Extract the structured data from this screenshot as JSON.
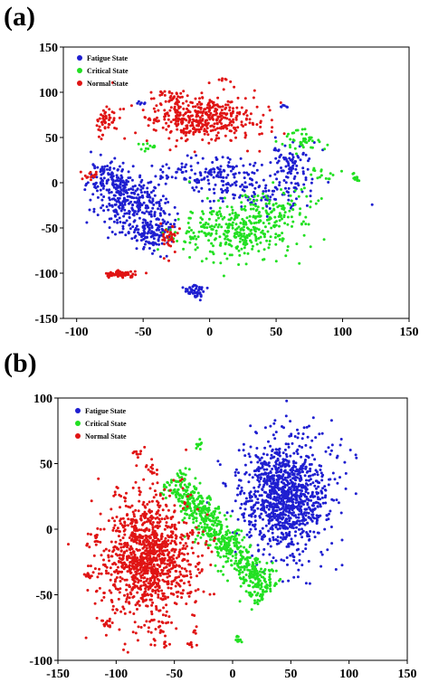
{
  "panels": [
    {
      "label": "(a)"
    },
    {
      "label": "(b)"
    }
  ],
  "chart_data": [
    {
      "type": "scatter",
      "title": "",
      "xlabel": "",
      "ylabel": "",
      "xlim": [
        -110,
        150
      ],
      "ylim": [
        -150,
        150
      ],
      "xticks": [
        -100,
        -50,
        0,
        50,
        100,
        150
      ],
      "yticks": [
        -150,
        -100,
        -50,
        0,
        50,
        100,
        150
      ],
      "grid": false,
      "legend_position": "top-left",
      "series": [
        {
          "name": "Fatigue State",
          "color": "#1f1fd0",
          "clusters": [
            {
              "cx": -60,
              "cy": -20,
              "sx": 12,
              "sy": 14,
              "n": 260
            },
            {
              "cx": -75,
              "cy": 5,
              "sx": 8,
              "sy": 10,
              "n": 110
            },
            {
              "cx": -50,
              "cy": -55,
              "sx": 10,
              "sy": 8,
              "n": 90
            },
            {
              "cx": -38,
              "cy": -45,
              "sx": 5,
              "sy": 16,
              "n": 70
            },
            {
              "cx": 0,
              "cy": 12,
              "sx": 18,
              "sy": 8,
              "n": 130
            },
            {
              "cx": 30,
              "cy": -10,
              "sx": 20,
              "sy": 9,
              "n": 120
            },
            {
              "cx": 62,
              "cy": 20,
              "sx": 9,
              "sy": 12,
              "n": 90
            },
            {
              "cx": -10,
              "cy": -120,
              "sx": 4,
              "sy": 4,
              "n": 45
            },
            {
              "cx": 55,
              "cy": 84,
              "sx": 2,
              "sy": 1,
              "n": 6
            },
            {
              "cx": -50,
              "cy": 88,
              "sx": 3,
              "sy": 1,
              "n": 6
            }
          ]
        },
        {
          "name": "Critical State",
          "color": "#22e022",
          "clusters": [
            {
              "cx": 20,
              "cy": -55,
              "sx": 22,
              "sy": 15,
              "n": 330
            },
            {
              "cx": 50,
              "cy": -28,
              "sx": 14,
              "sy": 12,
              "n": 90
            },
            {
              "cx": 70,
              "cy": 45,
              "sx": 7,
              "sy": 7,
              "n": 45
            },
            {
              "cx": 110,
              "cy": 5,
              "sx": 2,
              "sy": 2,
              "n": 14
            },
            {
              "cx": -46,
              "cy": 40,
              "sx": 3,
              "sy": 2,
              "n": 12
            },
            {
              "cx": 88,
              "cy": 10,
              "sx": 5,
              "sy": 4,
              "n": 15
            }
          ]
        },
        {
          "name": "Normal State",
          "color": "#e01414",
          "clusters": [
            {
              "cx": -5,
              "cy": 70,
              "sx": 22,
              "sy": 12,
              "n": 420
            },
            {
              "cx": -28,
              "cy": 95,
              "sx": 6,
              "sy": 4,
              "n": 35
            },
            {
              "cx": -67,
              "cy": -101,
              "sx": 6,
              "sy": 2,
              "n": 70
            },
            {
              "cx": -78,
              "cy": 70,
              "sx": 4,
              "sy": 8,
              "n": 50
            },
            {
              "cx": -30,
              "cy": -60,
              "sx": 3,
              "sy": 10,
              "n": 35
            },
            {
              "cx": -90,
              "cy": 8,
              "sx": 3,
              "sy": 3,
              "n": 15
            },
            {
              "cx": 10,
              "cy": 113,
              "sx": 3,
              "sy": 1,
              "n": 6
            }
          ]
        }
      ]
    },
    {
      "type": "scatter",
      "title": "",
      "xlabel": "",
      "ylabel": "",
      "xlim": [
        -150,
        150
      ],
      "ylim": [
        -100,
        100
      ],
      "xticks": [
        -150,
        -100,
        -50,
        0,
        50,
        100,
        150
      ],
      "yticks": [
        -100,
        -50,
        0,
        50,
        100
      ],
      "grid": false,
      "legend_position": "top-left",
      "series": [
        {
          "name": "Fatigue State",
          "color": "#1f1fd0",
          "clusters": [
            {
              "cx": 45,
              "cy": 25,
              "sx": 20,
              "sy": 22,
              "n": 1100
            }
          ]
        },
        {
          "name": "Critical State",
          "color": "#22e022",
          "band": {
            "x0": -52,
            "y0": 40,
            "x1": 30,
            "y1": -50,
            "width": 13,
            "n": 650
          },
          "clusters": [
            {
              "cx": -28,
              "cy": 64,
              "sx": 1.5,
              "sy": 2,
              "n": 10
            },
            {
              "cx": 5,
              "cy": -83,
              "sx": 1.5,
              "sy": 2,
              "n": 10
            }
          ]
        },
        {
          "name": "Normal State",
          "color": "#e01414",
          "clusters": [
            {
              "cx": -72,
              "cy": -22,
              "sx": 20,
              "sy": 24,
              "n": 1150
            },
            {
              "cx": -82,
              "cy": 57,
              "sx": 2,
              "sy": 1.5,
              "n": 8
            },
            {
              "cx": -108,
              "cy": -72,
              "sx": 3,
              "sy": 2,
              "n": 14
            },
            {
              "cx": -123,
              "cy": -35,
              "sx": 2,
              "sy": 2,
              "n": 10
            },
            {
              "cx": -117,
              "cy": -8,
              "sx": 2,
              "sy": 2,
              "n": 8
            },
            {
              "cx": -62,
              "cy": -75,
              "sx": 2,
              "sy": 2,
              "n": 10
            },
            {
              "cx": -57,
              "cy": -87,
              "sx": 1.5,
              "sy": 1.5,
              "n": 6
            },
            {
              "cx": -32,
              "cy": -78,
              "sx": 1.5,
              "sy": 1.5,
              "n": 5
            },
            {
              "cx": -37,
              "cy": -88,
              "sx": 1.5,
              "sy": 1,
              "n": 5
            },
            {
              "cx": -125,
              "cy": -12,
              "sx": 1.5,
              "sy": 1.5,
              "n": 5
            },
            {
              "cx": -70,
              "cy": 45,
              "sx": 3,
              "sy": 3,
              "n": 12
            }
          ]
        }
      ]
    }
  ]
}
